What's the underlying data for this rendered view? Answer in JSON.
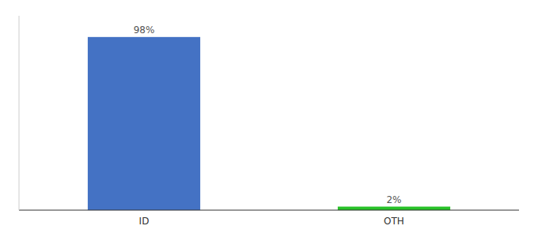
{
  "chart_data": {
    "type": "bar",
    "categories": [
      "ID",
      "OTH"
    ],
    "values": [
      98,
      2
    ],
    "value_labels": [
      "98%",
      "2%"
    ],
    "colors": [
      "#4472C4",
      "#28C228"
    ],
    "ylim": [
      0,
      110
    ],
    "data_labels": true,
    "tick_labels": "x"
  }
}
